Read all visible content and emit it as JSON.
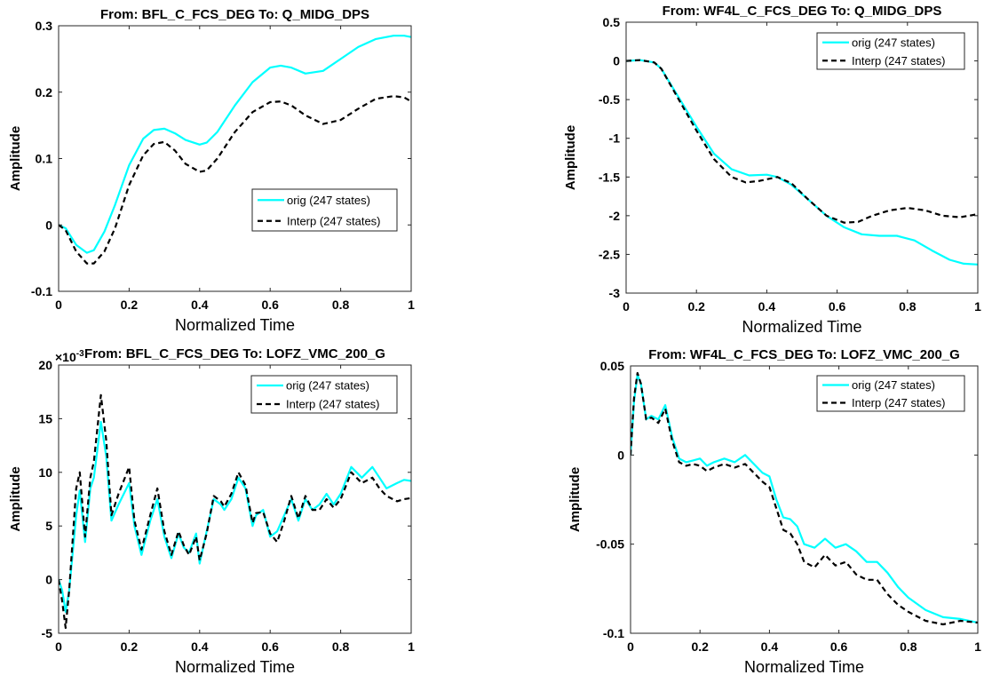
{
  "figure": {
    "background": "#ffffff",
    "colors": {
      "orig": "#00ffff",
      "interp": "#000000"
    }
  },
  "chart_data": [
    {
      "type": "line",
      "title": "From: BFL_C_FCS_DEG  To: Q_MIDG_DPS",
      "xlabel": "Normalized Time",
      "ylabel": "Amplitude",
      "xlim": [
        0,
        1
      ],
      "ylim": [
        -0.1,
        0.3
      ],
      "xticks": [
        "0",
        "0.2",
        "0.4",
        "0.6",
        "0.8",
        "1"
      ],
      "yticks": [
        "-0.1",
        "0",
        "0.1",
        "0.2",
        "0.3"
      ],
      "legend_position": "center-right",
      "series": [
        {
          "name": "orig (247 states)",
          "style": "solid",
          "color": "#00ffff",
          "x": [
            0,
            0.02,
            0.05,
            0.08,
            0.1,
            0.13,
            0.16,
            0.2,
            0.24,
            0.27,
            0.3,
            0.33,
            0.36,
            0.4,
            0.42,
            0.45,
            0.5,
            0.55,
            0.6,
            0.63,
            0.66,
            0.7,
            0.75,
            0.8,
            0.85,
            0.9,
            0.95,
            0.98,
            1.0
          ],
          "y": [
            0,
            -0.005,
            -0.03,
            -0.042,
            -0.038,
            -0.01,
            0.03,
            0.09,
            0.13,
            0.143,
            0.145,
            0.138,
            0.128,
            0.121,
            0.124,
            0.14,
            0.18,
            0.215,
            0.237,
            0.24,
            0.237,
            0.228,
            0.232,
            0.25,
            0.268,
            0.28,
            0.285,
            0.285,
            0.283
          ]
        },
        {
          "name": "Interp (247 states)",
          "style": "dashed",
          "color": "#000000",
          "x": [
            0,
            0.02,
            0.05,
            0.08,
            0.1,
            0.13,
            0.16,
            0.2,
            0.24,
            0.27,
            0.3,
            0.33,
            0.36,
            0.4,
            0.42,
            0.45,
            0.5,
            0.55,
            0.6,
            0.63,
            0.66,
            0.7,
            0.75,
            0.8,
            0.85,
            0.9,
            0.95,
            0.98,
            1.0
          ],
          "y": [
            0,
            -0.008,
            -0.04,
            -0.058,
            -0.058,
            -0.04,
            -0.005,
            0.06,
            0.105,
            0.122,
            0.125,
            0.112,
            0.092,
            0.08,
            0.082,
            0.1,
            0.14,
            0.17,
            0.185,
            0.186,
            0.18,
            0.165,
            0.152,
            0.158,
            0.175,
            0.19,
            0.194,
            0.192,
            0.186
          ]
        }
      ]
    },
    {
      "type": "line",
      "title": "From: WF4L_C_FCS_DEG  To: Q_MIDG_DPS",
      "xlabel": "Normalized Time",
      "ylabel": "Amplitude",
      "xlim": [
        0,
        1
      ],
      "ylim": [
        -3,
        0.5
      ],
      "xticks": [
        "0",
        "0.2",
        "0.4",
        "0.6",
        "0.8",
        "1"
      ],
      "yticks": [
        "-3",
        "-2.5",
        "-2",
        "-1.5",
        "-1",
        "-0.5",
        "0",
        "0.5"
      ],
      "legend_position": "top-right",
      "series": [
        {
          "name": "orig (247 states)",
          "style": "solid",
          "color": "#00ffff",
          "x": [
            0,
            0.04,
            0.08,
            0.1,
            0.14,
            0.2,
            0.25,
            0.3,
            0.35,
            0.4,
            0.43,
            0.47,
            0.52,
            0.57,
            0.62,
            0.67,
            0.72,
            0.77,
            0.82,
            0.87,
            0.92,
            0.96,
            1.0
          ],
          "y": [
            0,
            0.01,
            -0.02,
            -0.1,
            -0.4,
            -0.85,
            -1.2,
            -1.4,
            -1.48,
            -1.47,
            -1.5,
            -1.6,
            -1.8,
            -2.0,
            -2.15,
            -2.24,
            -2.26,
            -2.26,
            -2.32,
            -2.45,
            -2.57,
            -2.62,
            -2.63
          ]
        },
        {
          "name": "Interp (247 states)",
          "style": "dashed",
          "color": "#000000",
          "x": [
            0,
            0.04,
            0.08,
            0.1,
            0.14,
            0.2,
            0.25,
            0.3,
            0.34,
            0.38,
            0.43,
            0.47,
            0.52,
            0.57,
            0.62,
            0.66,
            0.7,
            0.75,
            0.8,
            0.85,
            0.9,
            0.95,
            1.0
          ],
          "y": [
            0,
            0.01,
            -0.02,
            -0.1,
            -0.42,
            -0.9,
            -1.27,
            -1.5,
            -1.57,
            -1.55,
            -1.5,
            -1.58,
            -1.8,
            -2.0,
            -2.09,
            -2.08,
            -2.0,
            -1.93,
            -1.9,
            -1.93,
            -2.0,
            -2.02,
            -1.98
          ]
        }
      ]
    },
    {
      "type": "line",
      "title": "From: BFL_C_FCS_DEG  To: LOFZ_VMC_200_G",
      "exponent_label": "×10",
      "exponent": "-3",
      "xlabel": "Normalized Time",
      "ylabel": "Amplitude",
      "xlim": [
        0,
        1
      ],
      "ylim": [
        -5,
        20
      ],
      "xticks": [
        "0",
        "0.2",
        "0.4",
        "0.6",
        "0.8",
        "1"
      ],
      "yticks": [
        "-5",
        "0",
        "5",
        "10",
        "15",
        "20"
      ],
      "legend_position": "top-right",
      "series": [
        {
          "name": "orig (247 states)",
          "style": "solid",
          "color": "#00ffff",
          "x": [
            0,
            0.01,
            0.02,
            0.03,
            0.05,
            0.06,
            0.075,
            0.09,
            0.1,
            0.12,
            0.135,
            0.15,
            0.17,
            0.2,
            0.215,
            0.235,
            0.26,
            0.28,
            0.3,
            0.32,
            0.34,
            0.355,
            0.37,
            0.39,
            0.4,
            0.42,
            0.44,
            0.46,
            0.47,
            0.49,
            0.51,
            0.53,
            0.55,
            0.56,
            0.58,
            0.6,
            0.62,
            0.64,
            0.66,
            0.68,
            0.7,
            0.72,
            0.74,
            0.76,
            0.78,
            0.8,
            0.83,
            0.86,
            0.89,
            0.91,
            0.93,
            0.96,
            0.98,
            1.0
          ],
          "y": [
            0,
            -1,
            -3,
            -1,
            6,
            8.3,
            3.5,
            8.5,
            9.5,
            14.7,
            11.5,
            5.5,
            7,
            9,
            5,
            2.3,
            5.5,
            7.5,
            4,
            2,
            4.3,
            3,
            2.5,
            4.3,
            1.5,
            4.5,
            7.5,
            7,
            6.5,
            7.5,
            9.5,
            8.5,
            5,
            6,
            6.5,
            4,
            4.5,
            6,
            7.5,
            5.5,
            7.5,
            6.5,
            7,
            8,
            7,
            8,
            10.5,
            9.5,
            10.5,
            9.5,
            8.5,
            9,
            9.3,
            9.2
          ]
        },
        {
          "name": "Interp (247 states)",
          "style": "dashed",
          "color": "#000000",
          "x": [
            0,
            0.01,
            0.02,
            0.03,
            0.05,
            0.06,
            0.075,
            0.09,
            0.1,
            0.12,
            0.135,
            0.15,
            0.17,
            0.2,
            0.215,
            0.235,
            0.26,
            0.28,
            0.3,
            0.32,
            0.34,
            0.355,
            0.37,
            0.39,
            0.4,
            0.42,
            0.44,
            0.46,
            0.47,
            0.49,
            0.51,
            0.53,
            0.55,
            0.56,
            0.58,
            0.6,
            0.62,
            0.64,
            0.66,
            0.68,
            0.7,
            0.72,
            0.74,
            0.76,
            0.78,
            0.8,
            0.83,
            0.86,
            0.89,
            0.91,
            0.93,
            0.96,
            0.98,
            1.0
          ],
          "y": [
            0,
            -2,
            -4.5,
            -1,
            8.5,
            10,
            4,
            9.5,
            11,
            17.2,
            13,
            6,
            8,
            10.5,
            5.5,
            2.8,
            6,
            8.5,
            4.5,
            2.3,
            4.5,
            3.2,
            2.3,
            4,
            1.8,
            4.3,
            7.8,
            7.3,
            6.8,
            8,
            10,
            8.8,
            5.3,
            6.2,
            6.3,
            4.3,
            3.5,
            5.5,
            7.8,
            5.7,
            7.8,
            6.5,
            6.5,
            7.5,
            6.7,
            7.5,
            10,
            9,
            9.5,
            8.5,
            7.8,
            7.3,
            7.5,
            7.6
          ]
        }
      ]
    },
    {
      "type": "line",
      "title": "From: WF4L_C_FCS_DEG  To: LOFZ_VMC_200_G",
      "xlabel": "Normalized Time",
      "ylabel": "Amplitude",
      "xlim": [
        0,
        1
      ],
      "ylim": [
        -0.1,
        0.05
      ],
      "xticks": [
        "0",
        "0.2",
        "0.4",
        "0.6",
        "0.8",
        "1"
      ],
      "yticks": [
        "-0.1",
        "-0.05",
        "0",
        "0.05"
      ],
      "legend_position": "top-right",
      "series": [
        {
          "name": "orig (247 states)",
          "style": "solid",
          "color": "#00ffff",
          "x": [
            0,
            0.01,
            0.02,
            0.03,
            0.045,
            0.06,
            0.08,
            0.1,
            0.12,
            0.14,
            0.16,
            0.18,
            0.2,
            0.22,
            0.24,
            0.27,
            0.3,
            0.33,
            0.36,
            0.38,
            0.4,
            0.42,
            0.44,
            0.46,
            0.48,
            0.5,
            0.53,
            0.56,
            0.59,
            0.62,
            0.65,
            0.68,
            0.71,
            0.74,
            0.77,
            0.8,
            0.85,
            0.9,
            0.95,
            1.0
          ],
          "y": [
            0,
            0.03,
            0.045,
            0.04,
            0.02,
            0.022,
            0.02,
            0.028,
            0.01,
            -0.002,
            -0.004,
            -0.003,
            -0.002,
            -0.006,
            -0.004,
            -0.002,
            -0.004,
            0.0,
            -0.006,
            -0.01,
            -0.012,
            -0.025,
            -0.035,
            -0.036,
            -0.04,
            -0.05,
            -0.052,
            -0.047,
            -0.052,
            -0.05,
            -0.054,
            -0.06,
            -0.06,
            -0.066,
            -0.074,
            -0.08,
            -0.087,
            -0.091,
            -0.092,
            -0.094
          ]
        },
        {
          "name": "Interp (247 states)",
          "style": "dashed",
          "color": "#000000",
          "x": [
            0,
            0.01,
            0.02,
            0.03,
            0.045,
            0.06,
            0.08,
            0.1,
            0.12,
            0.14,
            0.16,
            0.18,
            0.2,
            0.22,
            0.24,
            0.27,
            0.3,
            0.33,
            0.36,
            0.38,
            0.4,
            0.42,
            0.44,
            0.46,
            0.48,
            0.5,
            0.53,
            0.56,
            0.59,
            0.62,
            0.65,
            0.68,
            0.71,
            0.74,
            0.77,
            0.8,
            0.85,
            0.9,
            0.95,
            1.0
          ],
          "y": [
            0,
            0.032,
            0.046,
            0.04,
            0.02,
            0.021,
            0.018,
            0.026,
            0.008,
            -0.004,
            -0.006,
            -0.005,
            -0.006,
            -0.009,
            -0.007,
            -0.005,
            -0.007,
            -0.005,
            -0.011,
            -0.015,
            -0.018,
            -0.03,
            -0.042,
            -0.044,
            -0.05,
            -0.06,
            -0.063,
            -0.056,
            -0.062,
            -0.06,
            -0.067,
            -0.07,
            -0.07,
            -0.078,
            -0.084,
            -0.088,
            -0.093,
            -0.095,
            -0.093,
            -0.094
          ]
        }
      ]
    }
  ]
}
